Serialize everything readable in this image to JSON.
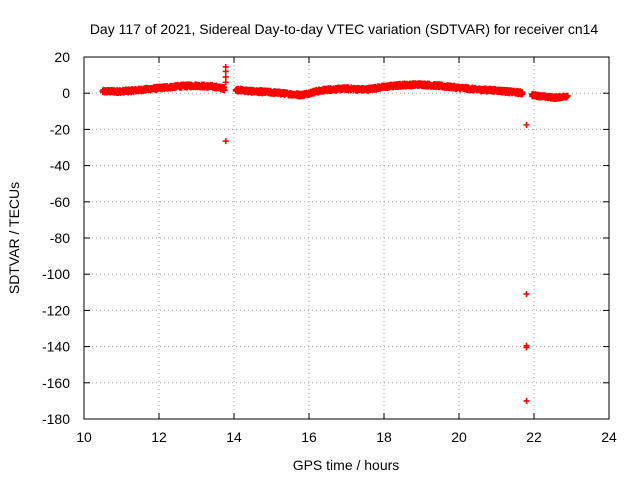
{
  "chart_data": {
    "type": "scatter",
    "title": "Day 117 of 2021, Sidereal Day-to-day VTEC variation (SDTVAR) for receiver cn14",
    "xlabel": "GPS time / hours",
    "ylabel": "SDTVAR / TECUs",
    "xlim": [
      10,
      24
    ],
    "ylim": [
      -180,
      20
    ],
    "x_ticks": [
      10,
      12,
      14,
      16,
      18,
      20,
      22,
      24
    ],
    "y_ticks": [
      20,
      0,
      -20,
      -40,
      -60,
      -80,
      -100,
      -120,
      -140,
      -160,
      -180
    ],
    "x_tick_labels": [
      "10",
      "12",
      "14",
      "16",
      "18",
      "20",
      "22",
      "24"
    ],
    "y_tick_labels": [
      "20",
      "0",
      "-20",
      "-40",
      "-60",
      "-80",
      "-100",
      "-120",
      "-140",
      "-160",
      "-180"
    ],
    "grid": true,
    "marker": "+",
    "series": [
      {
        "name": "SDTVAR",
        "color": "#ff0000",
        "segments": [
          {
            "x_start": 10.5,
            "x_end": 13.75,
            "step": 0.02,
            "trend": [
              [
                10.5,
                1.0
              ],
              [
                11.0,
                1.0
              ],
              [
                11.5,
                1.8
              ],
              [
                12.0,
                2.8
              ],
              [
                12.5,
                3.8
              ],
              [
                13.0,
                4.2
              ],
              [
                13.5,
                3.5
              ],
              [
                13.75,
                2.5
              ]
            ],
            "spread": 1.8
          },
          {
            "x_start": 14.05,
            "x_end": 21.7,
            "step": 0.02,
            "trend": [
              [
                14.05,
                2.0
              ],
              [
                14.5,
                1.0
              ],
              [
                15.0,
                0.5
              ],
              [
                15.5,
                -0.5
              ],
              [
                15.8,
                -1.0
              ],
              [
                16.2,
                1.0
              ],
              [
                16.5,
                2.0
              ],
              [
                17.0,
                2.5
              ],
              [
                17.5,
                2.0
              ],
              [
                18.0,
                3.5
              ],
              [
                18.5,
                4.5
              ],
              [
                19.0,
                4.8
              ],
              [
                19.5,
                4.0
              ],
              [
                20.0,
                3.0
              ],
              [
                20.5,
                2.0
              ],
              [
                21.0,
                1.5
              ],
              [
                21.5,
                0.5
              ],
              [
                21.7,
                0.0
              ]
            ],
            "spread": 1.8
          },
          {
            "x_start": 21.95,
            "x_end": 22.9,
            "step": 0.02,
            "trend": [
              [
                21.95,
                -1.0
              ],
              [
                22.3,
                -2.0
              ],
              [
                22.6,
                -2.5
              ],
              [
                22.9,
                -1.5
              ]
            ],
            "spread": 1.6
          }
        ],
        "points": [
          [
            13.78,
            14.5
          ],
          [
            13.78,
            12.0
          ],
          [
            13.78,
            9.0
          ],
          [
            13.78,
            6.0
          ],
          [
            13.78,
            -26.5
          ],
          [
            21.8,
            -17.5
          ],
          [
            21.8,
            -111.0
          ],
          [
            21.8,
            -139.5
          ],
          [
            21.8,
            -140.5
          ],
          [
            21.8,
            -170.0
          ]
        ]
      }
    ]
  }
}
